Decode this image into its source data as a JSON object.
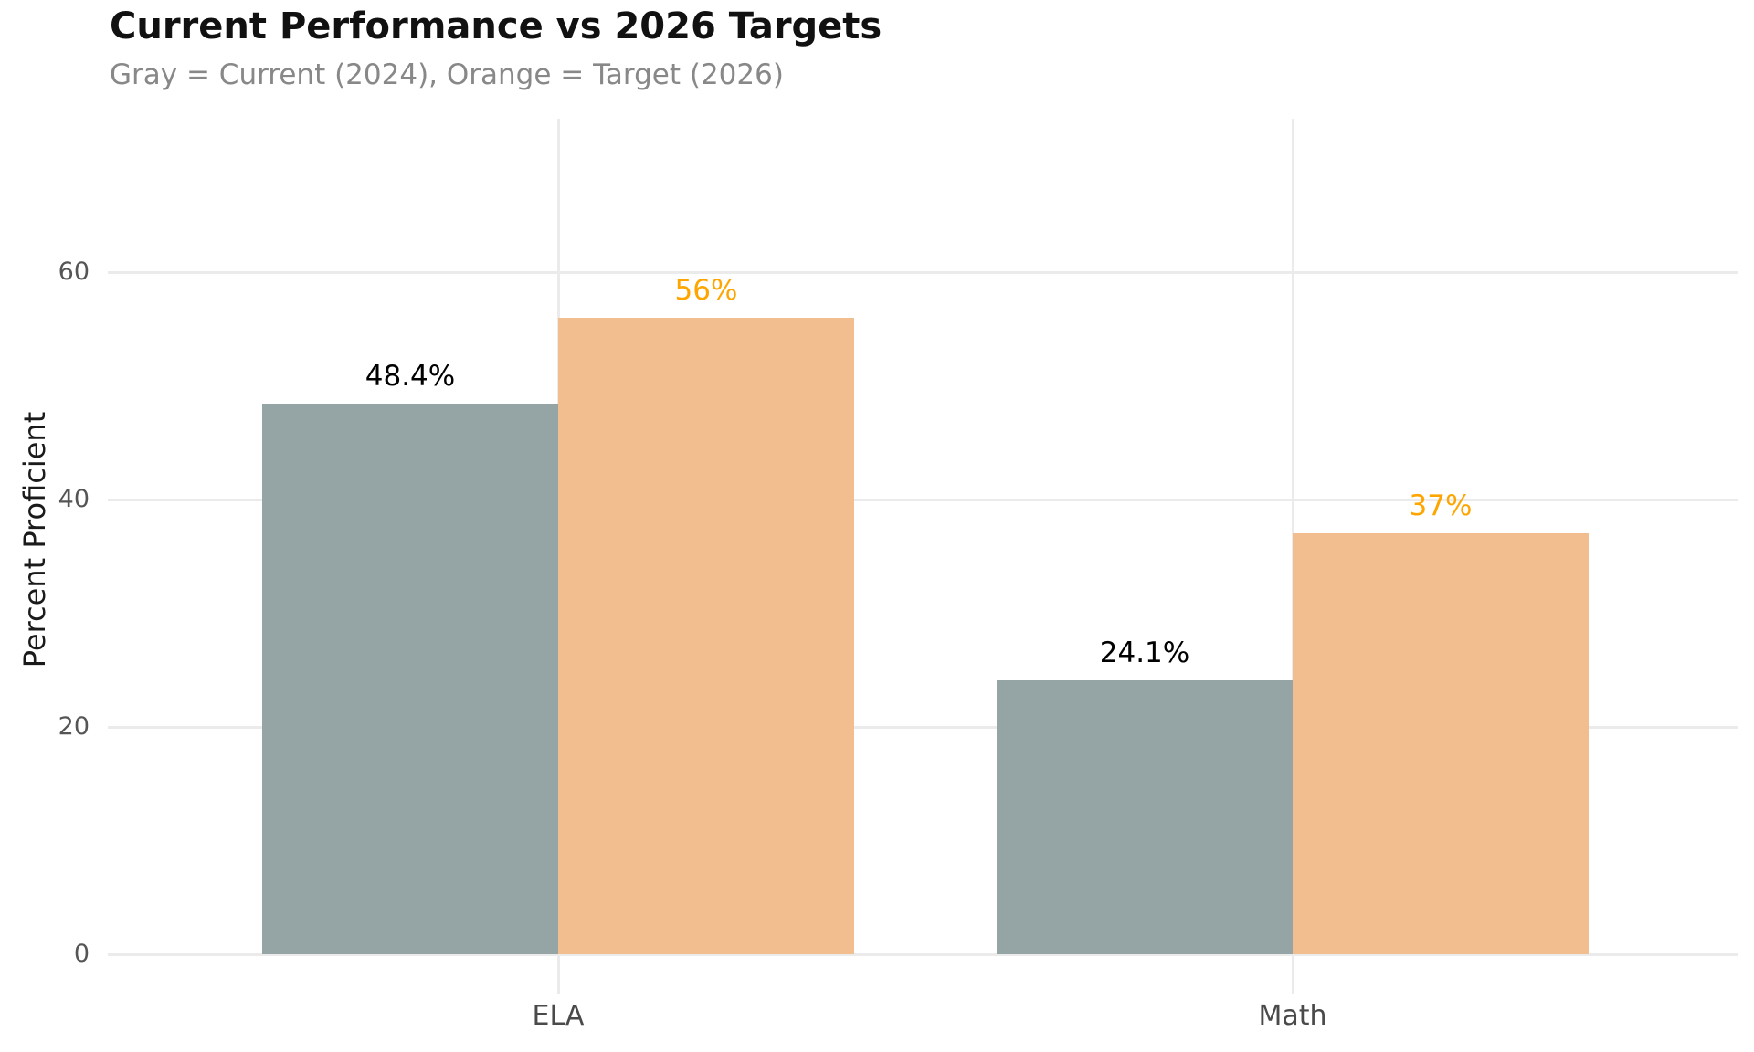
{
  "chart_data": {
    "type": "bar",
    "title": "Current Performance vs 2026 Targets",
    "subtitle": "Gray = Current (2024), Orange = Target (2026)",
    "xlabel": "",
    "ylabel": "Percent Proficient",
    "categories": [
      "ELA",
      "Math"
    ],
    "series": [
      {
        "name": "Current (2024)",
        "values": [
          48.4,
          24.1
        ],
        "value_labels": [
          "48.4%",
          "24.1%"
        ],
        "color": "#95a4a4",
        "label_color": "#000000"
      },
      {
        "name": "Target (2026)",
        "values": [
          56,
          37
        ],
        "value_labels": [
          "56%",
          "37%"
        ],
        "color": "#f2bd8f",
        "label_color": "#ffa500"
      }
    ],
    "yticks": [
      0,
      20,
      40,
      60
    ],
    "ylim": [
      0,
      73.5
    ],
    "grid": true,
    "legend_position": "none"
  },
  "colors": {
    "background": "#ffffff",
    "grid": "#ebebeb",
    "title": "#111111",
    "subtitle": "#888888",
    "y_tick_label": "#555555",
    "category_label": "#4a4a4a",
    "axis_label": "#1a1a1a"
  }
}
